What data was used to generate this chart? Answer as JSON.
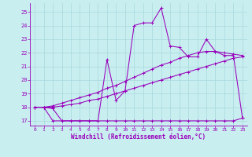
{
  "bg_color": "#c8eef0",
  "grid_color": "#a8d8dc",
  "line_color": "#9900bb",
  "xlabel": "Windchill (Refroidissement éolien,°C)",
  "xlim_min": -0.5,
  "xlim_max": 23.5,
  "ylim_min": 16.65,
  "ylim_max": 25.65,
  "yticks": [
    17,
    18,
    19,
    20,
    21,
    22,
    23,
    24,
    25
  ],
  "xticks": [
    0,
    1,
    2,
    3,
    4,
    5,
    6,
    7,
    8,
    9,
    10,
    11,
    12,
    13,
    14,
    15,
    16,
    17,
    18,
    19,
    20,
    21,
    22,
    23
  ],
  "series": [
    {
      "x": [
        0,
        1,
        2,
        3,
        4,
        5,
        6,
        7,
        8,
        9,
        10,
        11,
        12,
        13,
        14,
        15,
        16,
        17,
        18,
        19,
        20,
        21,
        22,
        23
      ],
      "y": [
        18.0,
        18.0,
        17.0,
        17.0,
        17.0,
        17.0,
        17.0,
        17.0,
        17.0,
        17.0,
        17.0,
        17.0,
        17.0,
        17.0,
        17.0,
        17.0,
        17.0,
        17.0,
        17.0,
        17.0,
        17.0,
        17.0,
        17.0,
        17.2
      ]
    },
    {
      "x": [
        0,
        1,
        2,
        3,
        4,
        5,
        6,
        7,
        8,
        9,
        10,
        11,
        12,
        13,
        14,
        15,
        16,
        17,
        18,
        19,
        20,
        21,
        22,
        23
      ],
      "y": [
        18.0,
        18.0,
        18.0,
        18.1,
        18.2,
        18.3,
        18.5,
        18.6,
        18.8,
        19.0,
        19.2,
        19.4,
        19.6,
        19.8,
        20.0,
        20.2,
        20.4,
        20.6,
        20.8,
        21.0,
        21.2,
        21.4,
        21.6,
        21.7
      ]
    },
    {
      "x": [
        0,
        1,
        2,
        3,
        4,
        5,
        6,
        7,
        8,
        9,
        10,
        11,
        12,
        13,
        14,
        15,
        16,
        17,
        18,
        19,
        20,
        21,
        22,
        23
      ],
      "y": [
        18.0,
        18.0,
        18.1,
        18.3,
        18.5,
        18.7,
        18.9,
        19.1,
        19.4,
        19.6,
        19.9,
        20.2,
        20.5,
        20.8,
        21.1,
        21.3,
        21.6,
        21.8,
        22.0,
        22.1,
        22.1,
        22.0,
        21.9,
        21.8
      ]
    },
    {
      "x": [
        0,
        1,
        2,
        3,
        4,
        5,
        6,
        7,
        8,
        9,
        10,
        11,
        12,
        13,
        14,
        15,
        16,
        17,
        18,
        19,
        20,
        21,
        22,
        23
      ],
      "y": [
        18.0,
        18.0,
        17.9,
        17.0,
        17.0,
        17.0,
        17.0,
        17.0,
        21.5,
        18.5,
        19.2,
        24.0,
        24.2,
        24.2,
        25.3,
        22.5,
        22.4,
        21.7,
        21.7,
        23.0,
        22.1,
        21.8,
        21.8,
        17.2
      ]
    }
  ]
}
